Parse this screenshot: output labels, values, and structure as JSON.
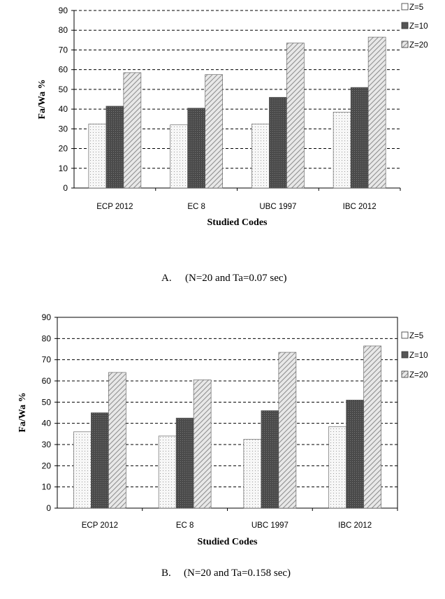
{
  "chart_data": [
    {
      "type": "bar",
      "categories": [
        "ECP 2012",
        "EC 8",
        "UBC 1997",
        "IBC  2012"
      ],
      "series": [
        {
          "name": "Z=5",
          "values": [
            32.5,
            32,
            32.5,
            38.5
          ]
        },
        {
          "name": "Z=10",
          "values": [
            41.5,
            40.5,
            46,
            51
          ]
        },
        {
          "name": "Z=20",
          "values": [
            58.5,
            57.5,
            73.5,
            76.5
          ]
        }
      ],
      "xlabel": "Studied Codes",
      "ylabel": "Fa/Wa %",
      "ylim": [
        0,
        90
      ],
      "yticks": [
        0,
        10,
        20,
        30,
        40,
        50,
        60,
        70,
        80,
        90
      ],
      "grid": "horizontal dashed",
      "legend": "right",
      "caption_label": "A.",
      "caption_text": "(N=20 and Ta=0.07 sec)"
    },
    {
      "type": "bar",
      "categories": [
        "ECP 2012",
        "EC 8",
        "UBC 1997",
        "IBC 2012"
      ],
      "series": [
        {
          "name": "Z=5",
          "values": [
            36,
            34,
            32.5,
            38.5
          ]
        },
        {
          "name": "Z=10",
          "values": [
            45,
            42.5,
            46,
            51
          ]
        },
        {
          "name": "Z=20",
          "values": [
            64,
            60.5,
            73.5,
            76.5
          ]
        }
      ],
      "xlabel": "Studied Codes",
      "ylabel": "Fa/Wa %",
      "ylim": [
        0,
        90
      ],
      "yticks": [
        0,
        10,
        20,
        30,
        40,
        50,
        60,
        70,
        80,
        90
      ],
      "grid": "horizontal dashed",
      "legend": "right",
      "caption_label": "B.",
      "caption_text": "(N=20 and Ta=0.158 sec)"
    }
  ]
}
